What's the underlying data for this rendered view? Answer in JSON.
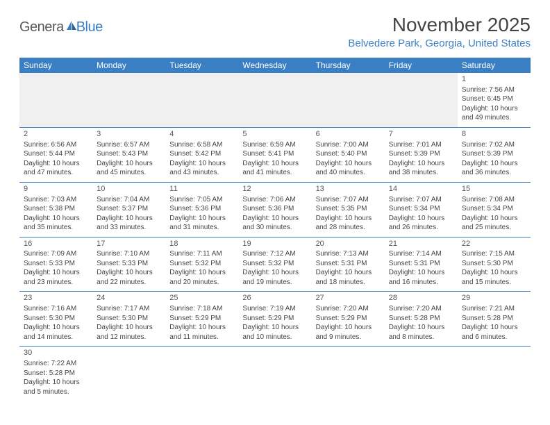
{
  "logo": {
    "text_general": "Genera",
    "text_blue": "Blue",
    "icon_color": "#3a7fc4"
  },
  "header": {
    "title": "November 2025",
    "location": "Belvedere Park, Georgia, United States"
  },
  "calendar": {
    "header_bg": "#3a7fc4",
    "header_fg": "#ffffff",
    "border_color": "#3a7fc4",
    "empty_bg": "#f0f0f0",
    "day_names": [
      "Sunday",
      "Monday",
      "Tuesday",
      "Wednesday",
      "Thursday",
      "Friday",
      "Saturday"
    ],
    "weeks": [
      [
        null,
        null,
        null,
        null,
        null,
        null,
        {
          "n": "1",
          "sr": "Sunrise: 7:56 AM",
          "ss": "Sunset: 6:45 PM",
          "dl": "Daylight: 10 hours and 49 minutes."
        }
      ],
      [
        {
          "n": "2",
          "sr": "Sunrise: 6:56 AM",
          "ss": "Sunset: 5:44 PM",
          "dl": "Daylight: 10 hours and 47 minutes."
        },
        {
          "n": "3",
          "sr": "Sunrise: 6:57 AM",
          "ss": "Sunset: 5:43 PM",
          "dl": "Daylight: 10 hours and 45 minutes."
        },
        {
          "n": "4",
          "sr": "Sunrise: 6:58 AM",
          "ss": "Sunset: 5:42 PM",
          "dl": "Daylight: 10 hours and 43 minutes."
        },
        {
          "n": "5",
          "sr": "Sunrise: 6:59 AM",
          "ss": "Sunset: 5:41 PM",
          "dl": "Daylight: 10 hours and 41 minutes."
        },
        {
          "n": "6",
          "sr": "Sunrise: 7:00 AM",
          "ss": "Sunset: 5:40 PM",
          "dl": "Daylight: 10 hours and 40 minutes."
        },
        {
          "n": "7",
          "sr": "Sunrise: 7:01 AM",
          "ss": "Sunset: 5:39 PM",
          "dl": "Daylight: 10 hours and 38 minutes."
        },
        {
          "n": "8",
          "sr": "Sunrise: 7:02 AM",
          "ss": "Sunset: 5:39 PM",
          "dl": "Daylight: 10 hours and 36 minutes."
        }
      ],
      [
        {
          "n": "9",
          "sr": "Sunrise: 7:03 AM",
          "ss": "Sunset: 5:38 PM",
          "dl": "Daylight: 10 hours and 35 minutes."
        },
        {
          "n": "10",
          "sr": "Sunrise: 7:04 AM",
          "ss": "Sunset: 5:37 PM",
          "dl": "Daylight: 10 hours and 33 minutes."
        },
        {
          "n": "11",
          "sr": "Sunrise: 7:05 AM",
          "ss": "Sunset: 5:36 PM",
          "dl": "Daylight: 10 hours and 31 minutes."
        },
        {
          "n": "12",
          "sr": "Sunrise: 7:06 AM",
          "ss": "Sunset: 5:36 PM",
          "dl": "Daylight: 10 hours and 30 minutes."
        },
        {
          "n": "13",
          "sr": "Sunrise: 7:07 AM",
          "ss": "Sunset: 5:35 PM",
          "dl": "Daylight: 10 hours and 28 minutes."
        },
        {
          "n": "14",
          "sr": "Sunrise: 7:07 AM",
          "ss": "Sunset: 5:34 PM",
          "dl": "Daylight: 10 hours and 26 minutes."
        },
        {
          "n": "15",
          "sr": "Sunrise: 7:08 AM",
          "ss": "Sunset: 5:34 PM",
          "dl": "Daylight: 10 hours and 25 minutes."
        }
      ],
      [
        {
          "n": "16",
          "sr": "Sunrise: 7:09 AM",
          "ss": "Sunset: 5:33 PM",
          "dl": "Daylight: 10 hours and 23 minutes."
        },
        {
          "n": "17",
          "sr": "Sunrise: 7:10 AM",
          "ss": "Sunset: 5:33 PM",
          "dl": "Daylight: 10 hours and 22 minutes."
        },
        {
          "n": "18",
          "sr": "Sunrise: 7:11 AM",
          "ss": "Sunset: 5:32 PM",
          "dl": "Daylight: 10 hours and 20 minutes."
        },
        {
          "n": "19",
          "sr": "Sunrise: 7:12 AM",
          "ss": "Sunset: 5:32 PM",
          "dl": "Daylight: 10 hours and 19 minutes."
        },
        {
          "n": "20",
          "sr": "Sunrise: 7:13 AM",
          "ss": "Sunset: 5:31 PM",
          "dl": "Daylight: 10 hours and 18 minutes."
        },
        {
          "n": "21",
          "sr": "Sunrise: 7:14 AM",
          "ss": "Sunset: 5:31 PM",
          "dl": "Daylight: 10 hours and 16 minutes."
        },
        {
          "n": "22",
          "sr": "Sunrise: 7:15 AM",
          "ss": "Sunset: 5:30 PM",
          "dl": "Daylight: 10 hours and 15 minutes."
        }
      ],
      [
        {
          "n": "23",
          "sr": "Sunrise: 7:16 AM",
          "ss": "Sunset: 5:30 PM",
          "dl": "Daylight: 10 hours and 14 minutes."
        },
        {
          "n": "24",
          "sr": "Sunrise: 7:17 AM",
          "ss": "Sunset: 5:30 PM",
          "dl": "Daylight: 10 hours and 12 minutes."
        },
        {
          "n": "25",
          "sr": "Sunrise: 7:18 AM",
          "ss": "Sunset: 5:29 PM",
          "dl": "Daylight: 10 hours and 11 minutes."
        },
        {
          "n": "26",
          "sr": "Sunrise: 7:19 AM",
          "ss": "Sunset: 5:29 PM",
          "dl": "Daylight: 10 hours and 10 minutes."
        },
        {
          "n": "27",
          "sr": "Sunrise: 7:20 AM",
          "ss": "Sunset: 5:29 PM",
          "dl": "Daylight: 10 hours and 9 minutes."
        },
        {
          "n": "28",
          "sr": "Sunrise: 7:20 AM",
          "ss": "Sunset: 5:28 PM",
          "dl": "Daylight: 10 hours and 8 minutes."
        },
        {
          "n": "29",
          "sr": "Sunrise: 7:21 AM",
          "ss": "Sunset: 5:28 PM",
          "dl": "Daylight: 10 hours and 6 minutes."
        }
      ],
      [
        {
          "n": "30",
          "sr": "Sunrise: 7:22 AM",
          "ss": "Sunset: 5:28 PM",
          "dl": "Daylight: 10 hours and 5 minutes."
        },
        null,
        null,
        null,
        null,
        null,
        null
      ]
    ]
  }
}
